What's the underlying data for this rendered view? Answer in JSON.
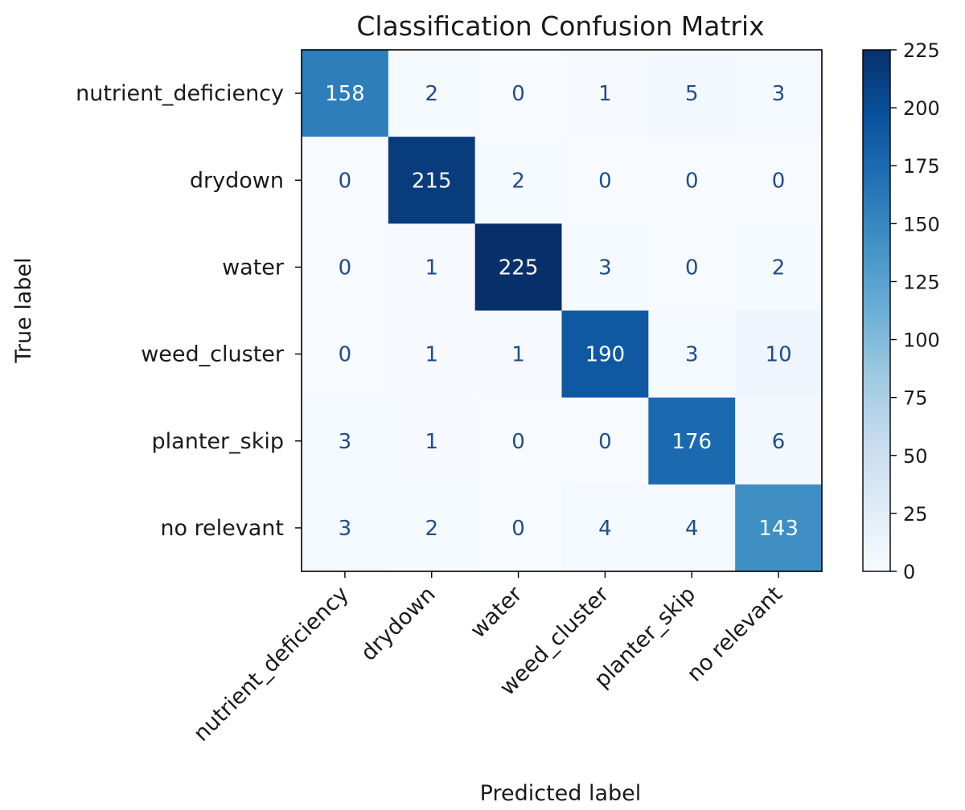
{
  "chart_data": {
    "type": "heatmap",
    "title": "Classification Confusion Matrix",
    "xlabel": "Predicted label",
    "ylabel": "True label",
    "x_categories": [
      "nutrient_deficiency",
      "drydown",
      "water",
      "weed_cluster",
      "planter_skip",
      "no relevant"
    ],
    "y_categories": [
      "nutrient_deficiency",
      "drydown",
      "water",
      "weed_cluster",
      "planter_skip",
      "no relevant"
    ],
    "values": [
      [
        158,
        2,
        0,
        1,
        5,
        3
      ],
      [
        0,
        215,
        2,
        0,
        0,
        0
      ],
      [
        0,
        1,
        225,
        3,
        0,
        2
      ],
      [
        0,
        1,
        1,
        190,
        3,
        10
      ],
      [
        3,
        1,
        0,
        0,
        176,
        6
      ],
      [
        3,
        2,
        0,
        4,
        4,
        143
      ]
    ],
    "colormap": "Blues",
    "colorbar": {
      "range": [
        0,
        225
      ],
      "ticks": [
        0,
        25,
        50,
        75,
        100,
        125,
        150,
        175,
        200,
        225
      ]
    },
    "colors": {
      "low_text": "#1f4e8c",
      "high_text": "#ffffff"
    }
  }
}
